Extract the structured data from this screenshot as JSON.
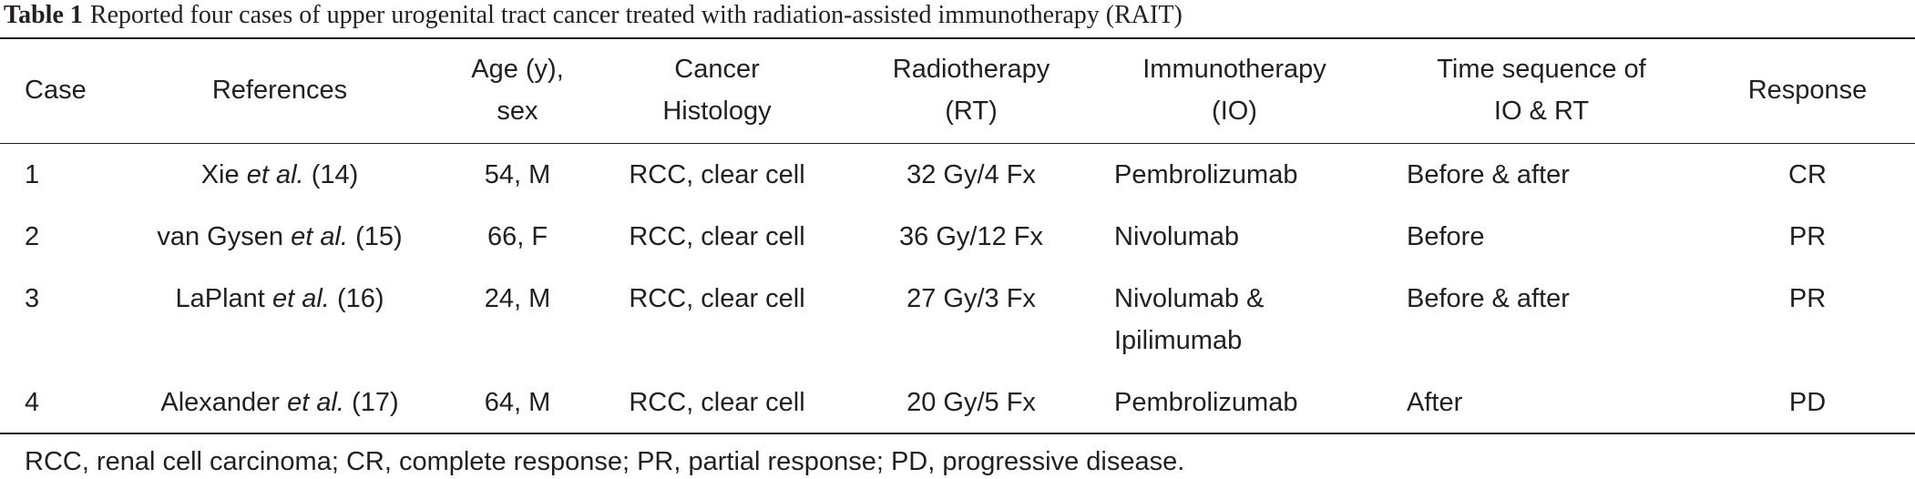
{
  "title": {
    "label": "Table 1",
    "text": "Reported four cases of upper urogenital tract cancer treated with radiation-assisted immunotherapy (RAIT)"
  },
  "table": {
    "headers": [
      [
        "Case"
      ],
      [
        "References"
      ],
      [
        "Age (y),",
        "sex"
      ],
      [
        "Cancer",
        "Histology"
      ],
      [
        "Radiotherapy",
        "(RT)"
      ],
      [
        "Immunotherapy",
        "(IO)"
      ],
      [
        "Time sequence of",
        "IO & RT"
      ],
      [
        "Response"
      ]
    ],
    "rows": [
      [
        "1",
        {
          "name": "Xie",
          "etal": "et al.",
          "ref": "(14)"
        },
        "54, M",
        "RCC, clear cell",
        "32 Gy/4 Fx",
        [
          "Pembrolizumab"
        ],
        "Before & after",
        "CR"
      ],
      [
        "2",
        {
          "name": "van Gysen",
          "etal": "et al.",
          "ref": "(15)"
        },
        "66, F",
        "RCC, clear cell",
        "36 Gy/12 Fx",
        [
          "Nivolumab"
        ],
        "Before",
        "PR"
      ],
      [
        "3",
        {
          "name": "LaPlant",
          "etal": "et al.",
          "ref": "(16)"
        },
        "24, M",
        "RCC, clear cell",
        "27 Gy/3 Fx",
        [
          "Nivolumab &",
          "Ipilimumab"
        ],
        "Before & after",
        "PR"
      ],
      [
        "4",
        {
          "name": "Alexander",
          "etal": "et al.",
          "ref": "(17)"
        },
        "64, M",
        "RCC, clear cell",
        "20 Gy/5 Fx",
        [
          "Pembrolizumab"
        ],
        "After",
        "PD"
      ]
    ]
  },
  "footnote": "RCC, renal cell carcinoma; CR, complete response; PR, partial response; PD, progressive disease."
}
